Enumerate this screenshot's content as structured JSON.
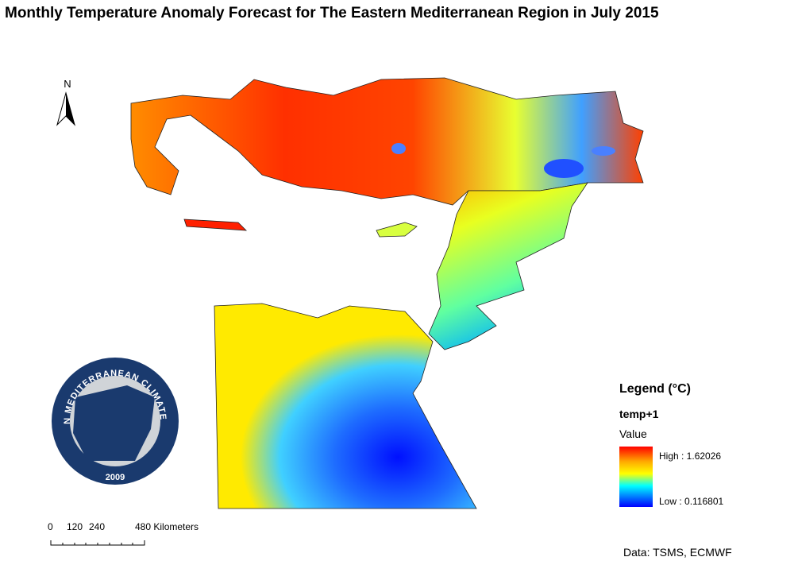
{
  "title": "Monthly Temperature Anomaly Forecast for The Eastern Mediterranean Region in July 2015",
  "north_arrow": {
    "label": "N"
  },
  "legend": {
    "title": "Legend (°C)",
    "layer": "temp+1",
    "field": "Value",
    "high": "High : 1.62026",
    "low": "Low : 0.116801"
  },
  "scale_bar": {
    "labels": [
      "0",
      "120",
      "240",
      "480 Kilometers"
    ]
  },
  "logo": {
    "name": "EASTERN MEDITERRANEAN CLIMATE CENTRE",
    "year": "2009"
  },
  "source": "Data: TSMS, ECMWF"
}
